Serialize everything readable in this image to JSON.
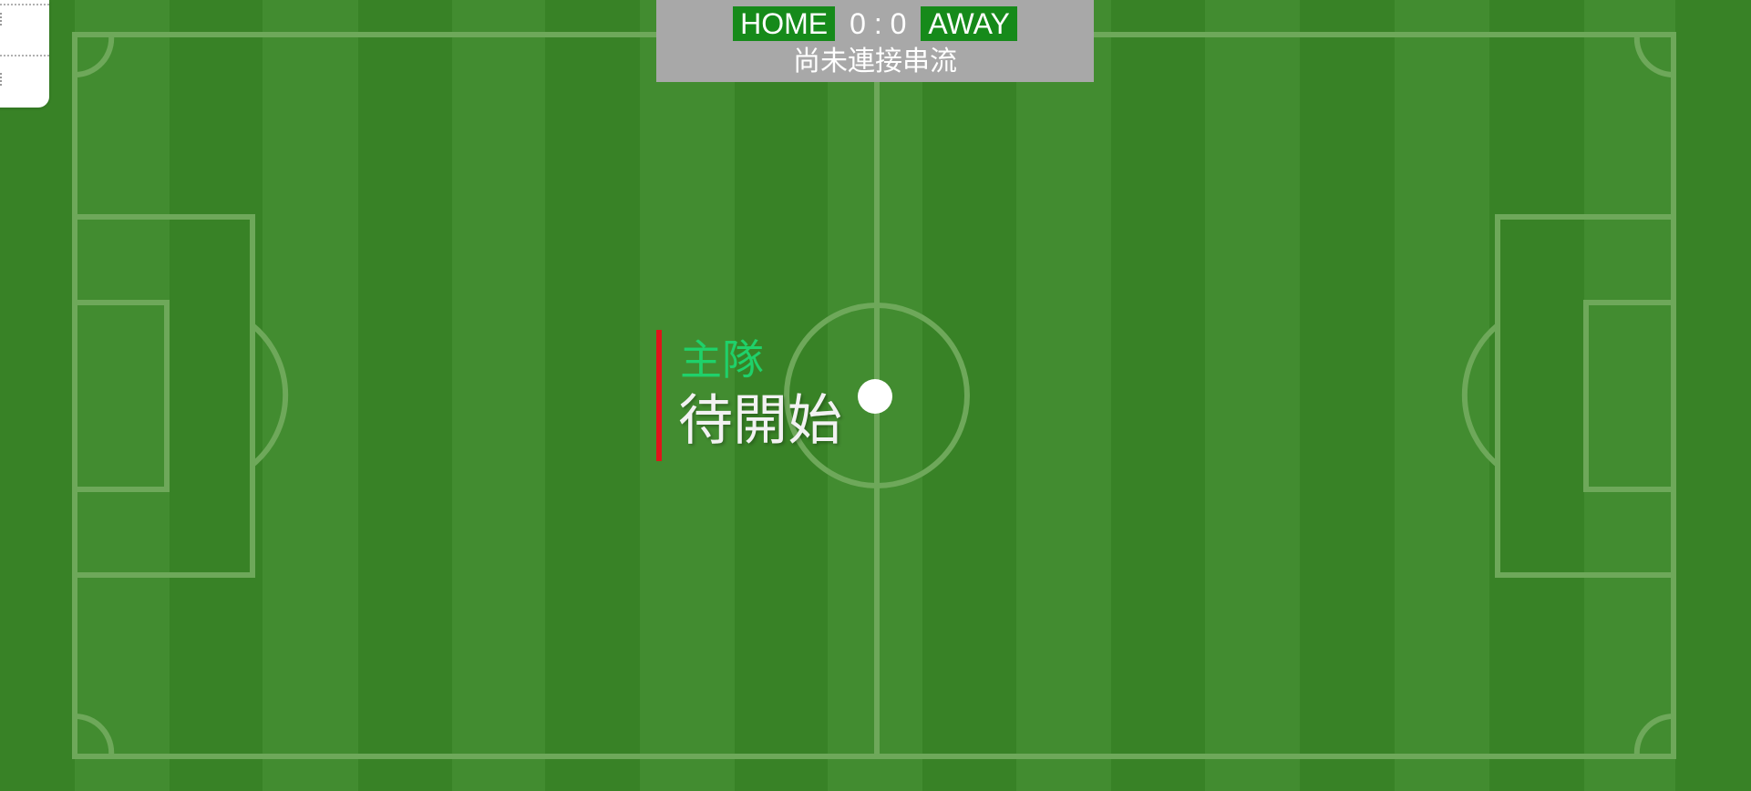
{
  "scoreboard": {
    "home_label": "HOME",
    "away_label": "AWAY",
    "score": "0 : 0",
    "stream_status": "尚未連接串流"
  },
  "overlay": {
    "team_name": "主隊",
    "match_state": "待開始"
  },
  "colors": {
    "stripe_dark": "#388226",
    "stripe_light": "#428c30",
    "pitch_lines": "#6ea85a",
    "team_tag_bg": "#168a1a",
    "scoreboard_bg": "#a8a8a8",
    "status_accent": "#e0141a",
    "team_name_color": "#1fd16a"
  },
  "icons": {
    "ball": "ball-icon"
  }
}
